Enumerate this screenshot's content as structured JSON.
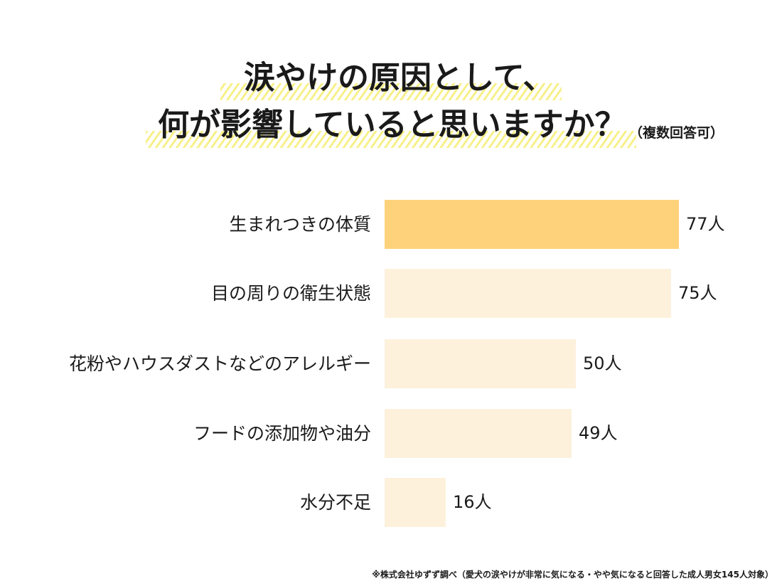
{
  "title": {
    "line1": "涙やけの原因として、",
    "line2": "何が影響していると思いますか？",
    "note": "（複数回答可）"
  },
  "colors": {
    "highlight_bar": "#fdd27a",
    "normal_bar": "#fdf1dc",
    "hatch": "#f7f08a"
  },
  "bars": [
    {
      "label": "生まれつきの体質",
      "value_label": "77人"
    },
    {
      "label": "目の周りの衛生状態",
      "value_label": "75人"
    },
    {
      "label": "花粉やハウスダストなどのアレルギー",
      "value_label": "50人"
    },
    {
      "label": "フードの添加物や油分",
      "value_label": "49人"
    },
    {
      "label": "水分不足",
      "value_label": "16人"
    }
  ],
  "footnote": "※株式会社ゆずず調べ（愛犬の涙やけが非常に気になる・やや気になると回答した成人男女145人対象）",
  "chart_data": {
    "type": "bar",
    "orientation": "horizontal",
    "title": "涙やけの原因として、何が影響していると思いますか？（複数回答可）",
    "categories": [
      "生まれつきの体質",
      "目の周りの衛生状態",
      "花粉やハウスダストなどのアレルギー",
      "フードの添加物や油分",
      "水分不足"
    ],
    "values": [
      77,
      75,
      50,
      49,
      16
    ],
    "unit": "人",
    "xlabel": "",
    "ylabel": "",
    "grid": false,
    "legend": null,
    "highlighted_category": "生まれつきの体質",
    "source_note": "※株式会社ゆずず調べ（愛犬の涙やけが非常に気になる・やや気になると回答した成人男女145人対象）"
  }
}
